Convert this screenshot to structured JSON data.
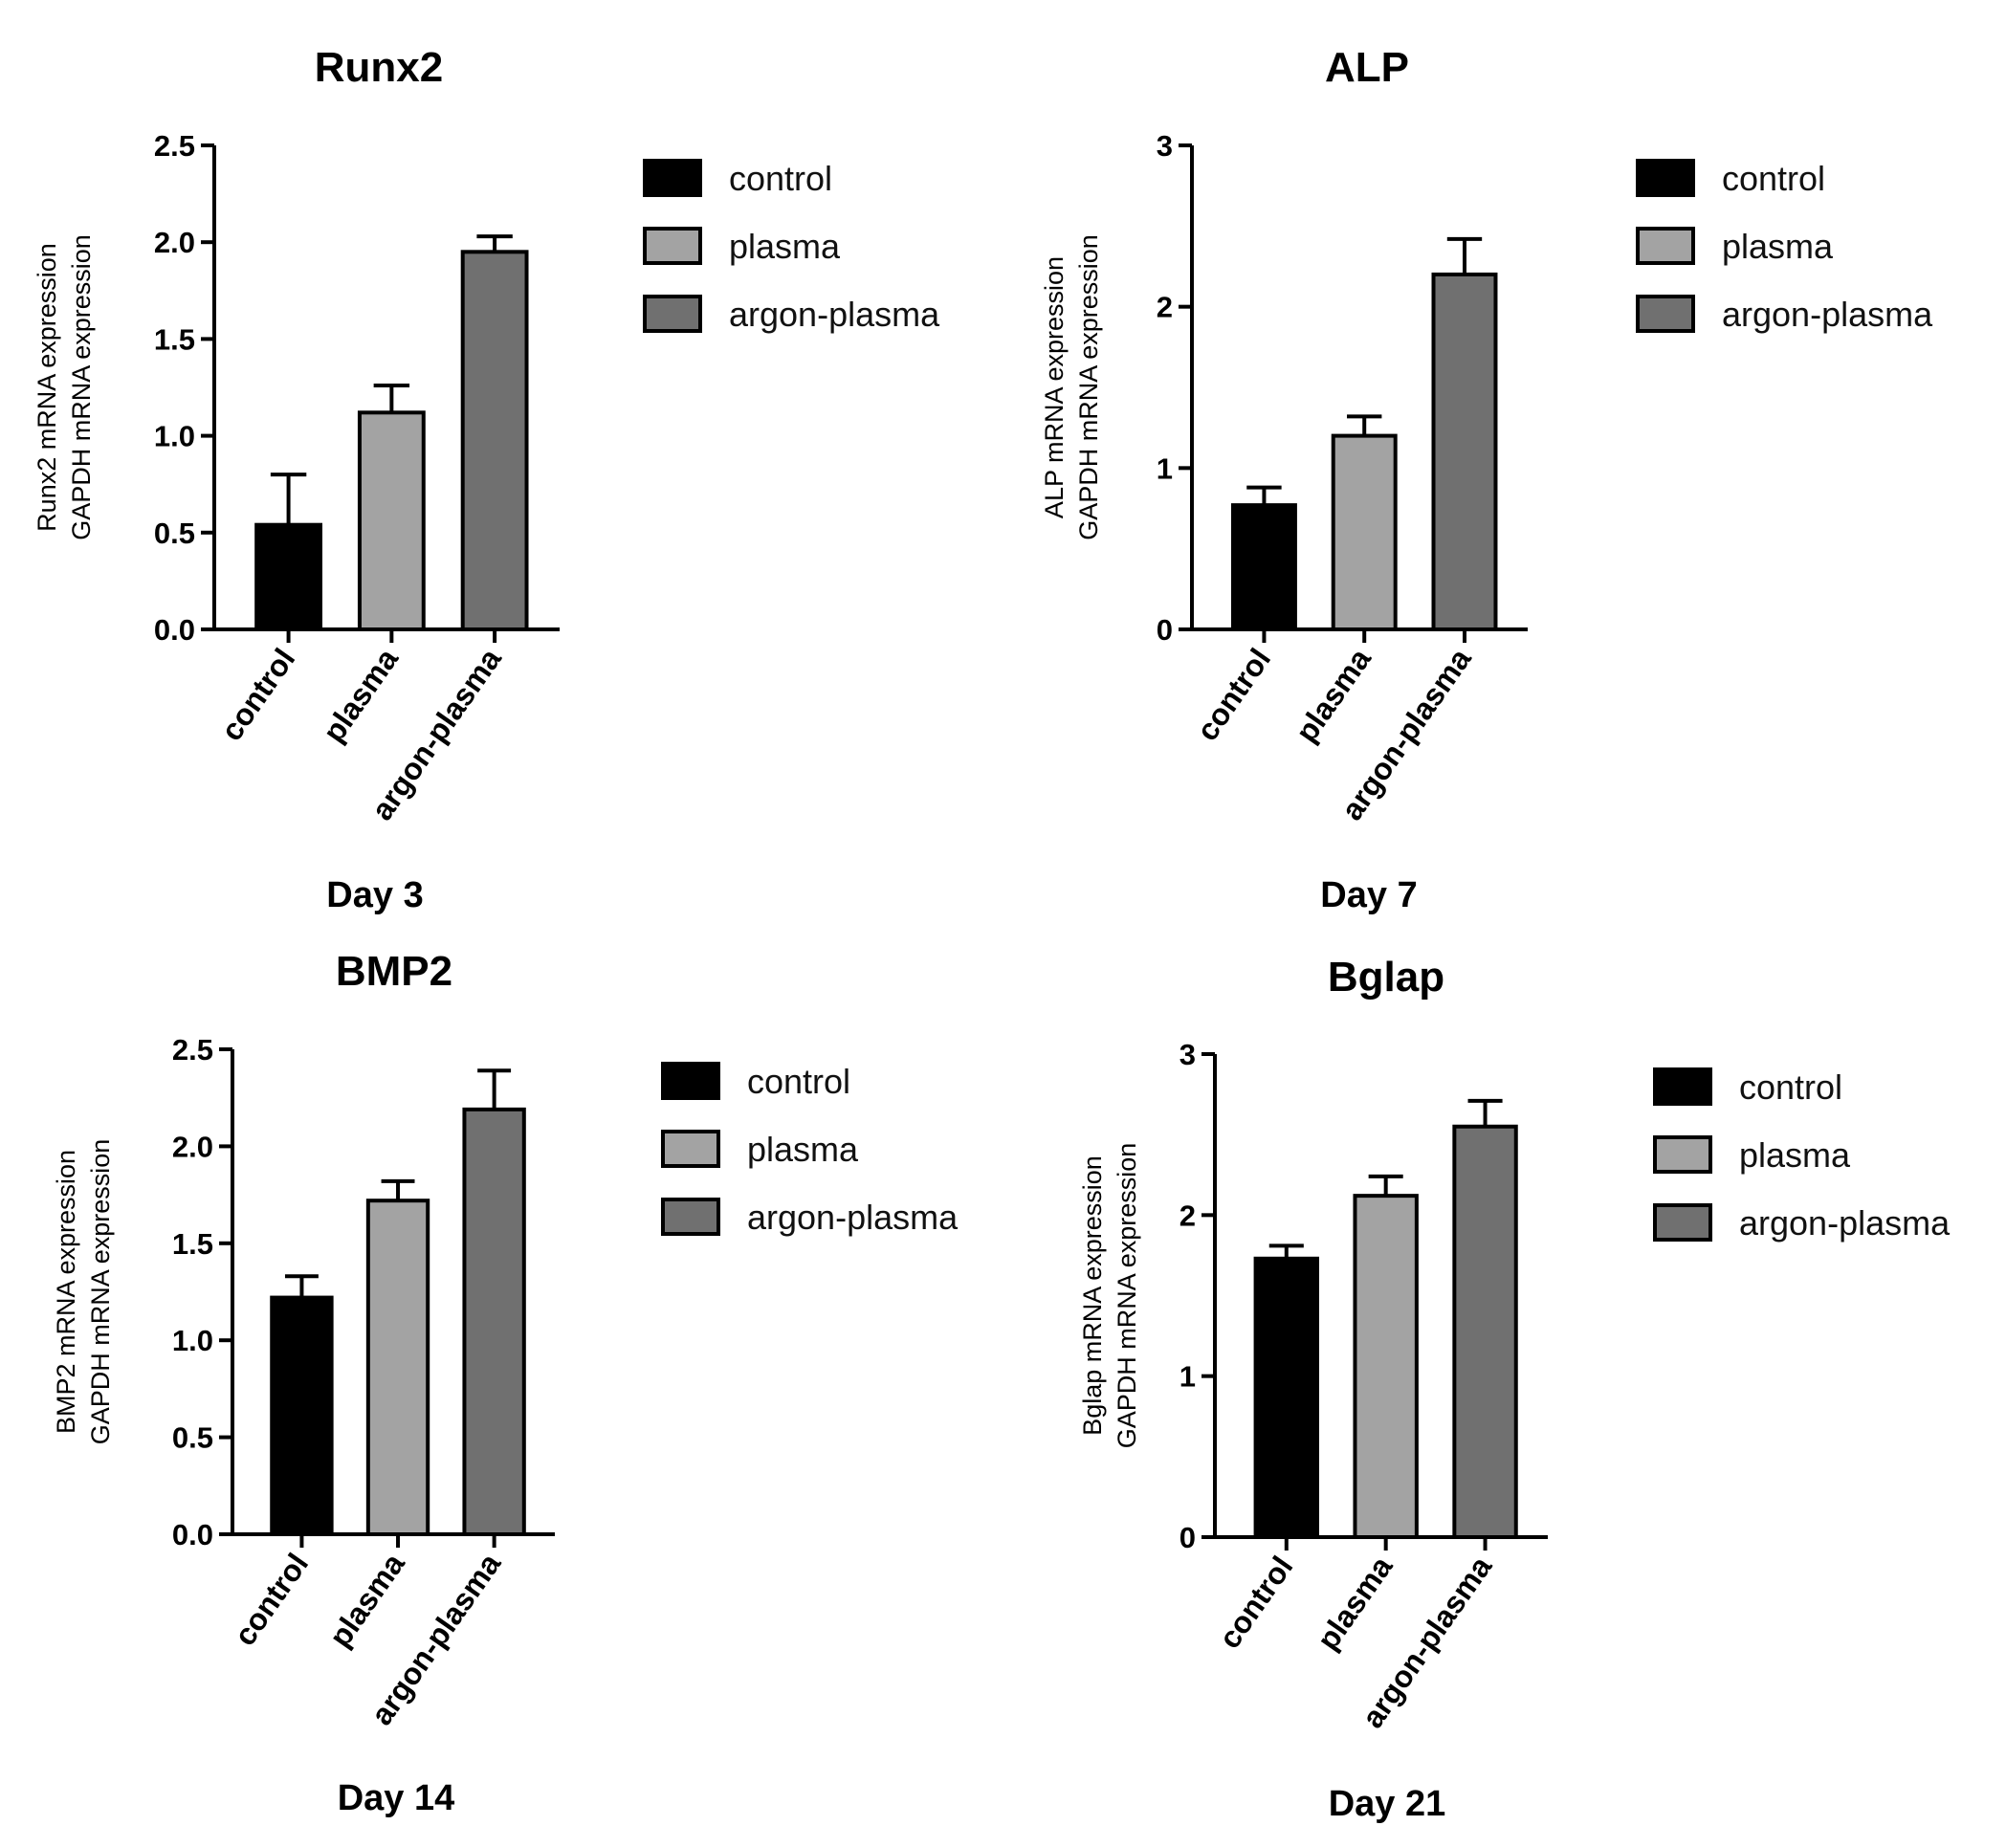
{
  "chart_data": [
    {
      "type": "bar",
      "title": "Runx2",
      "xlabel": "Day 3",
      "ylabel_lines": [
        "Runx2 mRNA expression",
        "GAPDH mRNA expression"
      ],
      "categories": [
        "control",
        "plasma",
        "argon-plasma"
      ],
      "values": [
        0.54,
        1.12,
        1.95
      ],
      "errors": [
        0.26,
        0.14,
        0.08
      ],
      "ylim": [
        0,
        2.5
      ],
      "yticks": [
        "0.0",
        "0.5",
        "1.0",
        "1.5",
        "2.0",
        "2.5"
      ],
      "ytick_values": [
        0,
        0.5,
        1.0,
        1.5,
        2.0,
        2.5
      ],
      "colors": [
        "#000000",
        "#a3a3a3",
        "#707070"
      ],
      "legend": [
        "control",
        "plasma",
        "argon-plasma"
      ],
      "legend_position": "right",
      "grid": false
    },
    {
      "type": "bar",
      "title": "ALP",
      "xlabel": "Day 7",
      "ylabel_lines": [
        "ALP mRNA expression",
        "GAPDH mRNA expression"
      ],
      "categories": [
        "control",
        "plasma",
        "argon-plasma"
      ],
      "values": [
        0.77,
        1.2,
        2.2
      ],
      "errors": [
        0.11,
        0.12,
        0.22
      ],
      "ylim": [
        0,
        3
      ],
      "yticks": [
        "0",
        "1",
        "2",
        "3"
      ],
      "ytick_values": [
        0,
        1,
        2,
        3
      ],
      "colors": [
        "#000000",
        "#a3a3a3",
        "#707070"
      ],
      "legend": [
        "control",
        "plasma",
        "argon-plasma"
      ],
      "legend_position": "right",
      "grid": false
    },
    {
      "type": "bar",
      "title": "BMP2",
      "xlabel": "Day 14",
      "ylabel_lines": [
        "BMP2 mRNA expression",
        "GAPDH mRNA expression"
      ],
      "categories": [
        "control",
        "plasma",
        "argon-plasma"
      ],
      "values": [
        1.22,
        1.72,
        2.19
      ],
      "errors": [
        0.11,
        0.1,
        0.2
      ],
      "ylim": [
        0,
        2.5
      ],
      "yticks": [
        "0.0",
        "0.5",
        "1.0",
        "1.5",
        "2.0",
        "2.5"
      ],
      "ytick_values": [
        0,
        0.5,
        1.0,
        1.5,
        2.0,
        2.5
      ],
      "colors": [
        "#000000",
        "#a3a3a3",
        "#707070"
      ],
      "legend": [
        "control",
        "plasma",
        "argon-plasma"
      ],
      "legend_position": "right",
      "grid": false
    },
    {
      "type": "bar",
      "title": "Bglap",
      "xlabel": "Day 21",
      "ylabel_lines": [
        "Bglap mRNA expression",
        "GAPDH mRNA expression"
      ],
      "categories": [
        "control",
        "plasma",
        "argon-plasma"
      ],
      "values": [
        1.73,
        2.12,
        2.55
      ],
      "errors": [
        0.08,
        0.12,
        0.16
      ],
      "ylim": [
        0,
        3
      ],
      "yticks": [
        "0",
        "1",
        "2",
        "3"
      ],
      "ytick_values": [
        0,
        1,
        2,
        3
      ],
      "colors": [
        "#000000",
        "#a3a3a3",
        "#707070"
      ],
      "legend": [
        "control",
        "plasma",
        "argon-plasma"
      ],
      "legend_position": "right",
      "grid": false
    }
  ]
}
